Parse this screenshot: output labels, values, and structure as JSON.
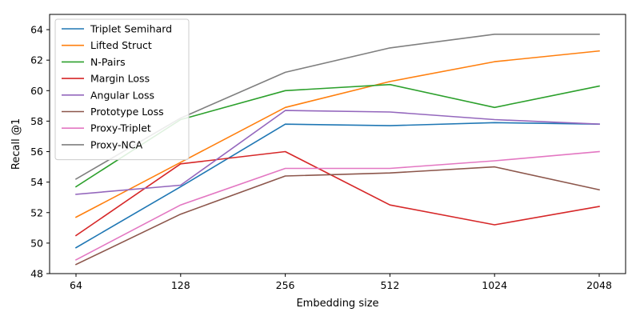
{
  "chart_data": {
    "type": "line",
    "title": "",
    "xlabel": "Embedding size",
    "ylabel": "Recall @1",
    "categories": [
      "64",
      "128",
      "256",
      "512",
      "1024",
      "2048"
    ],
    "ylim": [
      48,
      65
    ],
    "yticks": [
      48,
      50,
      52,
      54,
      56,
      58,
      60,
      62,
      64
    ],
    "x_scale": "log2",
    "grid": false,
    "legend_position": "top-left",
    "series": [
      {
        "name": "Triplet Semihard",
        "color": "#1f77b4",
        "values": [
          49.7,
          53.7,
          57.8,
          57.7,
          57.9,
          57.8
        ]
      },
      {
        "name": "Lifted Struct",
        "color": "#ff7f0e",
        "values": [
          51.7,
          55.3,
          58.9,
          60.6,
          61.9,
          62.6
        ]
      },
      {
        "name": "N-Pairs",
        "color": "#2ca02c",
        "values": [
          53.7,
          58.1,
          60.0,
          60.4,
          58.9,
          60.3
        ]
      },
      {
        "name": "Margin Loss",
        "color": "#d62728",
        "values": [
          50.5,
          55.2,
          56.0,
          52.5,
          51.2,
          52.4
        ]
      },
      {
        "name": "Angular Loss",
        "color": "#9467bd",
        "values": [
          53.2,
          53.8,
          58.7,
          58.6,
          58.1,
          57.8
        ]
      },
      {
        "name": "Prototype Loss",
        "color": "#8c564b",
        "values": [
          48.6,
          51.9,
          54.4,
          54.6,
          55.0,
          53.5
        ]
      },
      {
        "name": "Proxy-Triplet",
        "color": "#e377c2",
        "values": [
          48.9,
          52.5,
          54.9,
          54.9,
          55.4,
          56.0
        ]
      },
      {
        "name": "Proxy-NCA",
        "color": "#7f7f7f",
        "values": [
          54.2,
          58.2,
          61.2,
          62.8,
          63.7,
          63.7
        ]
      }
    ]
  }
}
